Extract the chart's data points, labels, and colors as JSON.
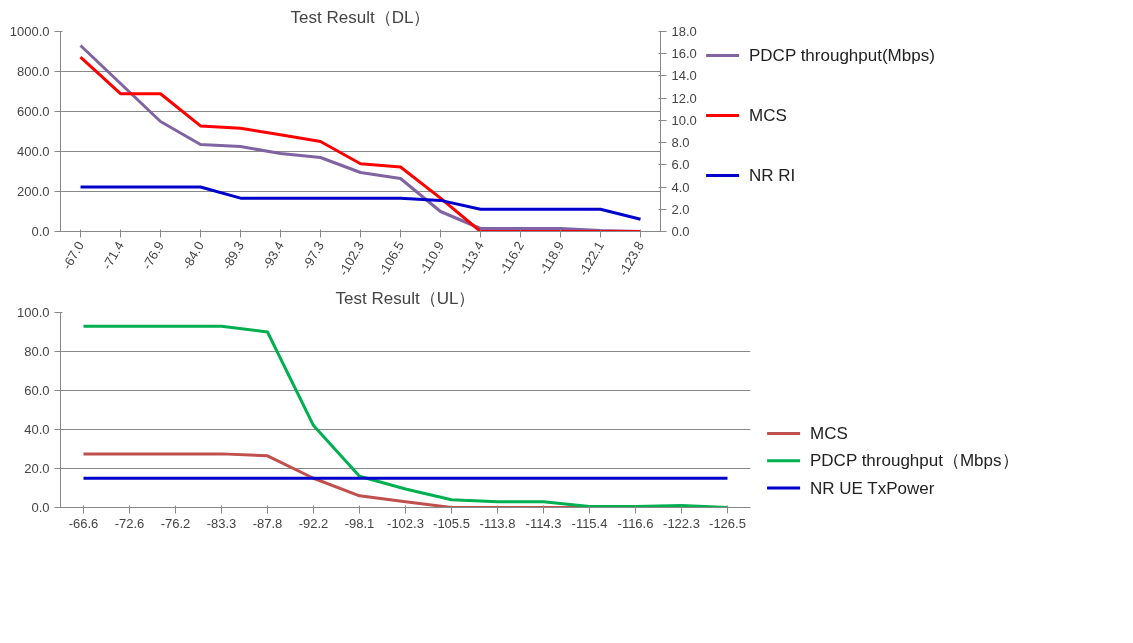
{
  "chart_data": [
    {
      "type": "line",
      "title": "Test Result（DL）",
      "categories": [
        "-67.0",
        "-71.4",
        "-76.9",
        "-84.0",
        "-89.3",
        "-93.4",
        "-97.3",
        "-102.3",
        "-106.5",
        "-110.9",
        "-113.4",
        "-116.2",
        "-118.9",
        "-122.1",
        "-123.8"
      ],
      "series": [
        {
          "name": "PDCP throughput(Mbps)",
          "color": "#8064a2",
          "values": [
            930,
            740,
            550,
            435,
            425,
            390,
            370,
            295,
            265,
            100,
            15,
            15,
            15,
            5,
            0
          ]
        },
        {
          "name": "MCS",
          "color": "#ff0000",
          "axis": "y2",
          "values": [
            15.7,
            12.4,
            12.4,
            9.5,
            9.3,
            8.7,
            8.1,
            6.1,
            5.8,
            3.0,
            0,
            0,
            0,
            0,
            0
          ]
        },
        {
          "name": "NR RI",
          "color": "#0000cc",
          "axis": "y2",
          "values": [
            4,
            4,
            4,
            4,
            3,
            3,
            3,
            3,
            3,
            2.8,
            2,
            2,
            2,
            2,
            1.1
          ]
        }
      ],
      "ylim": [
        0,
        1000
      ],
      "yticks": [
        {
          "value": 0,
          "label": "0.0"
        },
        {
          "value": 200,
          "label": "200.0"
        },
        {
          "value": 400,
          "label": "400.0"
        },
        {
          "value": 600,
          "label": "600.0"
        },
        {
          "value": 800,
          "label": "800.0"
        },
        {
          "value": 1000,
          "label": "1000.0"
        }
      ],
      "y2lim": [
        0,
        18
      ],
      "y2ticks": [
        {
          "value": 0,
          "label": "0.0"
        },
        {
          "value": 2,
          "label": "2.0"
        },
        {
          "value": 4,
          "label": "4.0"
        },
        {
          "value": 6,
          "label": "6.0"
        },
        {
          "value": 8,
          "label": "8.0"
        },
        {
          "value": 10,
          "label": "10.0"
        },
        {
          "value": 12,
          "label": "12.0"
        },
        {
          "value": 14,
          "label": "14.0"
        },
        {
          "value": 16,
          "label": "16.0"
        },
        {
          "value": 18,
          "label": "18.0"
        }
      ],
      "grid": "y",
      "legend": "right"
    },
    {
      "type": "line",
      "title": "Test Result（UL）",
      "categories": [
        "-66.6",
        "-72.6",
        "-76.2",
        "-83.3",
        "-87.8",
        "-92.2",
        "-98.1",
        "-102.3",
        "-105.5",
        "-113.8",
        "-114.3",
        "-115.4",
        "-116.6",
        "-122.3",
        "-126.5"
      ],
      "series": [
        {
          "name": "MCS",
          "color": "#c0504d",
          "values": [
            27.5,
            27.5,
            27.5,
            27.5,
            26.5,
            15,
            6,
            3,
            0,
            0,
            0,
            0,
            0,
            null,
            null
          ]
        },
        {
          "name": "PDCP throughput（Mbps）",
          "color": "#00b050",
          "values": [
            93,
            93,
            93,
            93,
            90,
            42,
            16,
            9.5,
            4,
            3,
            3,
            0.5,
            0.5,
            1,
            0
          ]
        },
        {
          "name": "NR UE TxPower",
          "color": "#0000cc",
          "values": [
            15,
            15,
            15,
            15,
            15,
            15,
            15,
            15,
            15,
            15,
            15,
            15,
            15,
            15,
            15
          ]
        }
      ],
      "ylim": [
        0,
        100
      ],
      "yticks": [
        {
          "value": 0,
          "label": "0.0"
        },
        {
          "value": 20,
          "label": "20.0"
        },
        {
          "value": 40,
          "label": "40.0"
        },
        {
          "value": 60,
          "label": "60.0"
        },
        {
          "value": 80,
          "label": "80.0"
        },
        {
          "value": 100,
          "label": "100.0"
        }
      ],
      "grid": "y",
      "legend": "right"
    }
  ]
}
